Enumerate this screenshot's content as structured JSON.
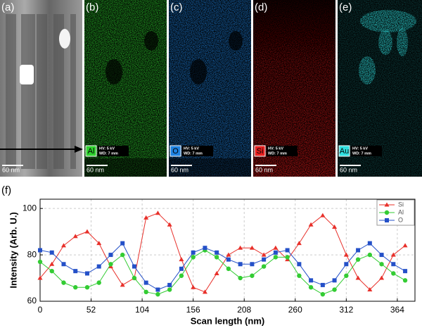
{
  "panels": [
    {
      "label": "(a)",
      "scale": "60 nm"
    },
    {
      "label": "(b)",
      "element": "Al",
      "hv": "HV: 5 kV",
      "wd": "WD: 7 mm",
      "scale": "60 nm",
      "color": "#2fd32f"
    },
    {
      "label": "(c)",
      "element": "O",
      "hv": "HV: 5 kV",
      "wd": "WD: 7 mm",
      "scale": "60 nm",
      "color": "#1e82e0"
    },
    {
      "label": "(d)",
      "element": "Si",
      "hv": "HV: 5 kV",
      "wd": "WD: 7 mm",
      "scale": "60 nm",
      "color": "#e82020"
    },
    {
      "label": "(e)",
      "element": "Au",
      "hv": "HV: 5 kV",
      "wd": "WD: 7 mm",
      "scale": "60 nm",
      "color": "#30e0e0"
    }
  ],
  "chart_data": {
    "type": "line",
    "label": "(f)",
    "xlabel": "Scan length (nm)",
    "ylabel": "Intensity (Arb. U.)",
    "x": [
      0,
      12,
      24,
      36,
      48,
      60,
      72,
      84,
      96,
      108,
      120,
      132,
      144,
      156,
      168,
      180,
      192,
      204,
      216,
      228,
      240,
      252,
      264,
      276,
      288,
      300,
      312,
      324,
      336,
      348,
      360,
      372
    ],
    "series": [
      {
        "name": "Si",
        "color": "#e8302a",
        "marker": "triangle",
        "values": [
          70,
          76,
          84,
          88,
          90,
          85,
          75,
          67,
          70,
          96,
          98,
          93,
          78,
          66,
          64,
          72,
          80,
          83,
          83,
          80,
          83,
          78,
          85,
          93,
          97,
          92,
          80,
          70,
          65,
          70,
          80,
          84
        ]
      },
      {
        "name": "Al",
        "color": "#33cc33",
        "marker": "circle",
        "values": [
          77,
          73,
          68,
          66,
          66,
          68,
          76,
          80,
          70,
          64,
          63,
          65,
          71,
          79,
          82,
          79,
          74,
          70,
          71,
          75,
          79,
          79,
          71,
          66,
          63,
          65,
          71,
          78,
          80,
          76,
          72,
          69
        ]
      },
      {
        "name": "O",
        "color": "#2450c8",
        "marker": "square",
        "values": [
          82,
          81,
          76,
          73,
          72,
          75,
          80,
          85,
          75,
          68,
          65,
          67,
          74,
          81,
          83,
          81,
          78,
          76,
          76,
          78,
          81,
          82,
          76,
          69,
          67,
          69,
          76,
          82,
          85,
          80,
          76,
          73
        ]
      }
    ],
    "xlim": [
      0,
      382
    ],
    "xticks": [
      0,
      52,
      104,
      156,
      208,
      260,
      312,
      364
    ],
    "ylim": [
      60,
      104
    ],
    "yticks": [
      60,
      80,
      100
    ],
    "grid": true,
    "legend": "upper right"
  }
}
